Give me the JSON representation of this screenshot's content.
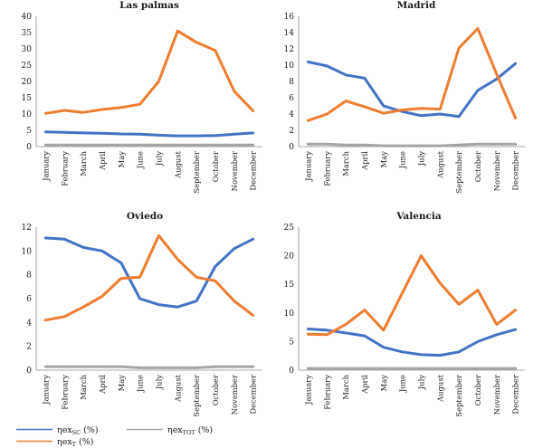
{
  "legend": [
    {
      "symbol": "ηex",
      "sub": "SC",
      "suffix": " (%)",
      "color": "#4472c4"
    },
    {
      "symbol": "ηex",
      "sub": "T",
      "suffix": " (%)",
      "color": "#ed7d31"
    },
    {
      "symbol": "ηex",
      "sub": "TOT",
      "suffix": " (%)",
      "color": "#a5a5a5"
    }
  ],
  "chart_data": [
    {
      "type": "line",
      "title": "Las palmas",
      "categories": [
        "January",
        "February",
        "March",
        "April",
        "May",
        "June",
        "July",
        "August",
        "September",
        "October",
        "November",
        "December"
      ],
      "ylim": [
        0,
        40
      ],
      "yticks": [
        0,
        5,
        10,
        15,
        20,
        25,
        30,
        35,
        40
      ],
      "series": [
        {
          "name": "ηexSC (%)",
          "color": "#4472c4",
          "values": [
            4.5,
            4.4,
            4.2,
            4.1,
            3.9,
            3.8,
            3.5,
            3.3,
            3.3,
            3.4,
            3.8,
            4.2
          ]
        },
        {
          "name": "ηexT (%)",
          "color": "#ed7d31",
          "values": [
            10.2,
            11.1,
            10.5,
            11.4,
            12.0,
            13.0,
            20.0,
            35.5,
            32.0,
            29.5,
            17.0,
            11.0
          ]
        },
        {
          "name": "ηexTOT (%)",
          "color": "#a5a5a5",
          "values": [
            0.5,
            0.5,
            0.5,
            0.5,
            0.5,
            0.5,
            0.5,
            0.5,
            0.5,
            0.5,
            0.5,
            0.5
          ]
        }
      ]
    },
    {
      "type": "line",
      "title": "Madrid",
      "categories": [
        "January",
        "February",
        "March",
        "April",
        "May",
        "June",
        "July",
        "August",
        "September",
        "October",
        "November",
        "December"
      ],
      "ylim": [
        0,
        16
      ],
      "yticks": [
        0,
        2,
        4,
        6,
        8,
        10,
        12,
        14,
        16
      ],
      "series": [
        {
          "name": "ηexSC (%)",
          "color": "#4472c4",
          "values": [
            10.4,
            9.9,
            8.8,
            8.4,
            5.0,
            4.3,
            3.8,
            4.0,
            3.7,
            6.9,
            8.3,
            10.2
          ]
        },
        {
          "name": "ηexT (%)",
          "color": "#ed7d31",
          "values": [
            3.2,
            4.0,
            5.6,
            4.9,
            4.1,
            4.5,
            4.7,
            4.6,
            12.1,
            14.5,
            8.9,
            3.5
          ]
        },
        {
          "name": "ηexTOT (%)",
          "color": "#a5a5a5",
          "values": [
            0.3,
            0.3,
            0.2,
            0.2,
            0.1,
            0.1,
            0.1,
            0.1,
            0.2,
            0.3,
            0.3,
            0.3
          ]
        }
      ]
    },
    {
      "type": "line",
      "title": "Oviedo",
      "categories": [
        "January",
        "February",
        "March",
        "April",
        "May",
        "June",
        "July",
        "August",
        "September",
        "October",
        "November",
        "December"
      ],
      "ylim": [
        0,
        12
      ],
      "yticks": [
        0,
        2,
        4,
        6,
        8,
        10,
        12
      ],
      "series": [
        {
          "name": "ηexSC (%)",
          "color": "#4472c4",
          "values": [
            11.1,
            11.0,
            10.3,
            10.0,
            9.0,
            6.0,
            5.5,
            5.3,
            5.8,
            8.7,
            10.2,
            11.0
          ]
        },
        {
          "name": "ηexT (%)",
          "color": "#ed7d31",
          "values": [
            4.2,
            4.5,
            5.3,
            6.2,
            7.7,
            7.8,
            11.3,
            9.3,
            7.8,
            7.5,
            5.8,
            4.6
          ]
        },
        {
          "name": "ηexTOT (%)",
          "color": "#a5a5a5",
          "values": [
            0.3,
            0.3,
            0.3,
            0.3,
            0.3,
            0.2,
            0.2,
            0.2,
            0.2,
            0.3,
            0.3,
            0.3
          ]
        }
      ]
    },
    {
      "type": "line",
      "title": "Valencia",
      "categories": [
        "January",
        "February",
        "March",
        "April",
        "May",
        "June",
        "July",
        "August",
        "September",
        "October",
        "November",
        "December"
      ],
      "ylim": [
        0,
        25
      ],
      "yticks": [
        0,
        5,
        10,
        15,
        20,
        25
      ],
      "series": [
        {
          "name": "ηexSC (%)",
          "color": "#4472c4",
          "values": [
            7.2,
            7.0,
            6.5,
            6.0,
            4.0,
            3.2,
            2.7,
            2.6,
            3.2,
            5.0,
            6.2,
            7.1
          ]
        },
        {
          "name": "ηexT (%)",
          "color": "#ed7d31",
          "values": [
            6.3,
            6.2,
            8.0,
            10.5,
            7.0,
            13.5,
            20.0,
            15.2,
            11.5,
            14.0,
            8.0,
            10.5
          ]
        },
        {
          "name": "ηexTOT (%)",
          "color": "#a5a5a5",
          "values": [
            0.3,
            0.3,
            0.3,
            0.3,
            0.3,
            0.3,
            0.3,
            0.3,
            0.3,
            0.3,
            0.3,
            0.3
          ]
        }
      ]
    }
  ]
}
